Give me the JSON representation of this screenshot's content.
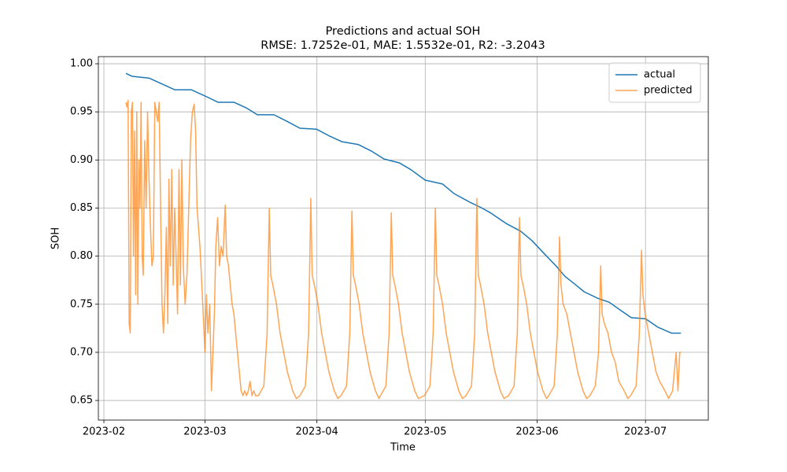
{
  "chart_data": {
    "type": "line",
    "title": "Predictions and actual SOH",
    "subtitle": "RMSE: 1.7252e-01, MAE: 1.5532e-01, R2: -3.2043",
    "x_label": "Time",
    "y_label": "SOH",
    "xlim": [
      30.47,
      199.4
    ],
    "ylim": [
      0.6296,
      1.0074
    ],
    "xticks": [
      {
        "value": 32,
        "label": "2023-02"
      },
      {
        "value": 60,
        "label": "2023-03"
      },
      {
        "value": 91,
        "label": "2023-04"
      },
      {
        "value": 121,
        "label": "2023-05"
      },
      {
        "value": 152,
        "label": "2023-06"
      },
      {
        "value": 182,
        "label": "2023-07"
      }
    ],
    "yticks": [
      0.65,
      {
        "value": 0.7,
        "label": "0.70"
      },
      0.75,
      {
        "value": 0.8,
        "label": "0.80"
      },
      0.85,
      {
        "value": 0.9,
        "label": "0.90"
      },
      0.95,
      {
        "value": 1,
        "label": "1.00"
      }
    ],
    "grid": true,
    "legend": "upper right",
    "series": [
      {
        "name": "actual",
        "color": "#1f77b4",
        "opacity": 1,
        "x": [
          38.1,
          39.8,
          44.6,
          51.6,
          56.2,
          60.3,
          63.6,
          68.0,
          71.5,
          74.5,
          79.1,
          82.8,
          86.3,
          90.9,
          94.4,
          97.9,
          102.5,
          106.2,
          109.6,
          113.8,
          117.0,
          121.0,
          125.8,
          129.0,
          133.4,
          136.2,
          139.1,
          143.4,
          147.4,
          150.6,
          154.1,
          157.2,
          159.7,
          162.4,
          165.0,
          168.9,
          172.0,
          175.0,
          178.1,
          182.0,
          185.5,
          189.2,
          191.8
        ],
        "values": [
          0.99,
          0.987,
          0.985,
          0.973,
          0.973,
          0.966,
          0.96,
          0.96,
          0.954,
          0.947,
          0.947,
          0.94,
          0.933,
          0.932,
          0.925,
          0.919,
          0.916,
          0.909,
          0.901,
          0.897,
          0.89,
          0.879,
          0.875,
          0.865,
          0.856,
          0.851,
          0.845,
          0.834,
          0.826,
          0.816,
          0.802,
          0.79,
          0.779,
          0.771,
          0.763,
          0.756,
          0.752,
          0.744,
          0.736,
          0.735,
          0.726,
          0.72,
          0.72
        ]
      },
      {
        "name": "predicted",
        "color": "#ff7f0e",
        "opacity": 0.7,
        "x": [
          38.1,
          38.4,
          38.7,
          39.0,
          39.3,
          39.6,
          39.9,
          40.2,
          40.5,
          40.8,
          41.1,
          41.4,
          41.7,
          42.0,
          42.3,
          42.6,
          42.9,
          43.3,
          43.7,
          44.1,
          44.5,
          44.9,
          45.3,
          45.7,
          46.1,
          46.5,
          46.9,
          47.3,
          47.7,
          48.1,
          48.5,
          48.9,
          49.3,
          49.7,
          50.0,
          50.4,
          50.8,
          51.2,
          51.6,
          52.0,
          52.4,
          52.8,
          53.2,
          53.6,
          54.0,
          54.5,
          55.0,
          55.5,
          56.0,
          56.5,
          57.0,
          57.4,
          57.8,
          58.2,
          58.6,
          59.0,
          59.5,
          60.0,
          60.4,
          60.8,
          61.3,
          61.8,
          62.2,
          62.6,
          63.0,
          63.5,
          64.0,
          64.5,
          65.0,
          65.6,
          66.0,
          66.5,
          67.0,
          67.5,
          68.0,
          68.5,
          69.0,
          69.5,
          70.0,
          70.5,
          71.0,
          71.5,
          72.0,
          72.5,
          73.0,
          73.5,
          74.0,
          74.8,
          76.3,
          77.2,
          77.8,
          78.2,
          78.8,
          79.8,
          80.8,
          81.8,
          82.8,
          84.3,
          85.3,
          86.3,
          87.8,
          88.7,
          89.3,
          89.7,
          90.3,
          91.3,
          92.3,
          93.3,
          94.3,
          95.8,
          96.8,
          97.7,
          99.2,
          100.1,
          100.7,
          101.1,
          101.7,
          102.7,
          103.7,
          104.7,
          105.7,
          107.2,
          108.2,
          108.6,
          110.1,
          111.0,
          111.6,
          112.0,
          112.6,
          113.6,
          114.6,
          115.6,
          116.6,
          118.1,
          119.1,
          120.8,
          122.3,
          123.2,
          123.8,
          124.2,
          124.8,
          125.8,
          126.8,
          127.8,
          128.8,
          130.3,
          131.3,
          132.3,
          133.8,
          134.7,
          135.3,
          135.7,
          136.3,
          137.3,
          138.3,
          139.3,
          140.3,
          141.8,
          142.8,
          144.1,
          145.6,
          146.5,
          147.1,
          147.5,
          148.1,
          149.1,
          150.1,
          151.1,
          152.1,
          153.6,
          154.6,
          155.2,
          156.7,
          157.6,
          158.2,
          158.6,
          159.2,
          160.2,
          161.2,
          162.2,
          163.2,
          164.7,
          165.7,
          166.6,
          168.1,
          169.0,
          169.6,
          170.0,
          170.6,
          171.6,
          172.6,
          173.6,
          174.6,
          176.1,
          177.1,
          177.9,
          179.4,
          180.3,
          180.9,
          181.3,
          181.9,
          182.9,
          183.9,
          184.9,
          185.9,
          187.4,
          188.4,
          189.5,
          190.5,
          191.0,
          191.5,
          191.8
        ],
        "values": [
          0.96,
          0.955,
          0.962,
          0.73,
          0.72,
          0.95,
          0.96,
          0.8,
          0.93,
          0.76,
          0.95,
          0.75,
          0.9,
          0.85,
          0.96,
          0.8,
          0.78,
          0.92,
          0.85,
          0.95,
          0.88,
          0.83,
          0.79,
          0.8,
          0.96,
          0.95,
          0.94,
          0.96,
          0.85,
          0.75,
          0.72,
          0.76,
          0.83,
          0.73,
          0.88,
          0.79,
          0.89,
          0.77,
          0.85,
          0.8,
          0.74,
          0.89,
          0.77,
          0.9,
          0.79,
          0.75,
          0.78,
          0.85,
          0.92,
          0.95,
          0.958,
          0.93,
          0.85,
          0.83,
          0.81,
          0.78,
          0.74,
          0.7,
          0.76,
          0.72,
          0.75,
          0.66,
          0.7,
          0.74,
          0.81,
          0.84,
          0.79,
          0.81,
          0.8,
          0.853,
          0.8,
          0.79,
          0.77,
          0.75,
          0.74,
          0.72,
          0.7,
          0.68,
          0.66,
          0.655,
          0.66,
          0.655,
          0.66,
          0.67,
          0.655,
          0.66,
          0.655,
          0.655,
          0.665,
          0.72,
          0.85,
          0.78,
          0.77,
          0.75,
          0.72,
          0.7,
          0.68,
          0.66,
          0.652,
          0.655,
          0.665,
          0.72,
          0.86,
          0.78,
          0.77,
          0.75,
          0.72,
          0.7,
          0.68,
          0.66,
          0.652,
          0.655,
          0.665,
          0.72,
          0.847,
          0.78,
          0.77,
          0.75,
          0.72,
          0.7,
          0.68,
          0.66,
          0.652,
          0.655,
          0.665,
          0.72,
          0.845,
          0.78,
          0.77,
          0.75,
          0.72,
          0.7,
          0.68,
          0.66,
          0.652,
          0.655,
          0.665,
          0.72,
          0.85,
          0.78,
          0.77,
          0.75,
          0.72,
          0.7,
          0.68,
          0.66,
          0.652,
          0.655,
          0.665,
          0.72,
          0.86,
          0.78,
          0.77,
          0.75,
          0.72,
          0.7,
          0.68,
          0.66,
          0.652,
          0.655,
          0.665,
          0.72,
          0.84,
          0.78,
          0.77,
          0.75,
          0.72,
          0.7,
          0.68,
          0.66,
          0.652,
          0.655,
          0.665,
          0.72,
          0.82,
          0.77,
          0.75,
          0.74,
          0.72,
          0.7,
          0.68,
          0.66,
          0.652,
          0.655,
          0.665,
          0.7,
          0.79,
          0.74,
          0.73,
          0.72,
          0.7,
          0.69,
          0.67,
          0.66,
          0.652,
          0.655,
          0.665,
          0.72,
          0.806,
          0.76,
          0.74,
          0.72,
          0.7,
          0.68,
          0.67,
          0.66,
          0.652,
          0.66,
          0.7,
          0.66,
          0.7,
          0.7
        ]
      }
    ]
  }
}
